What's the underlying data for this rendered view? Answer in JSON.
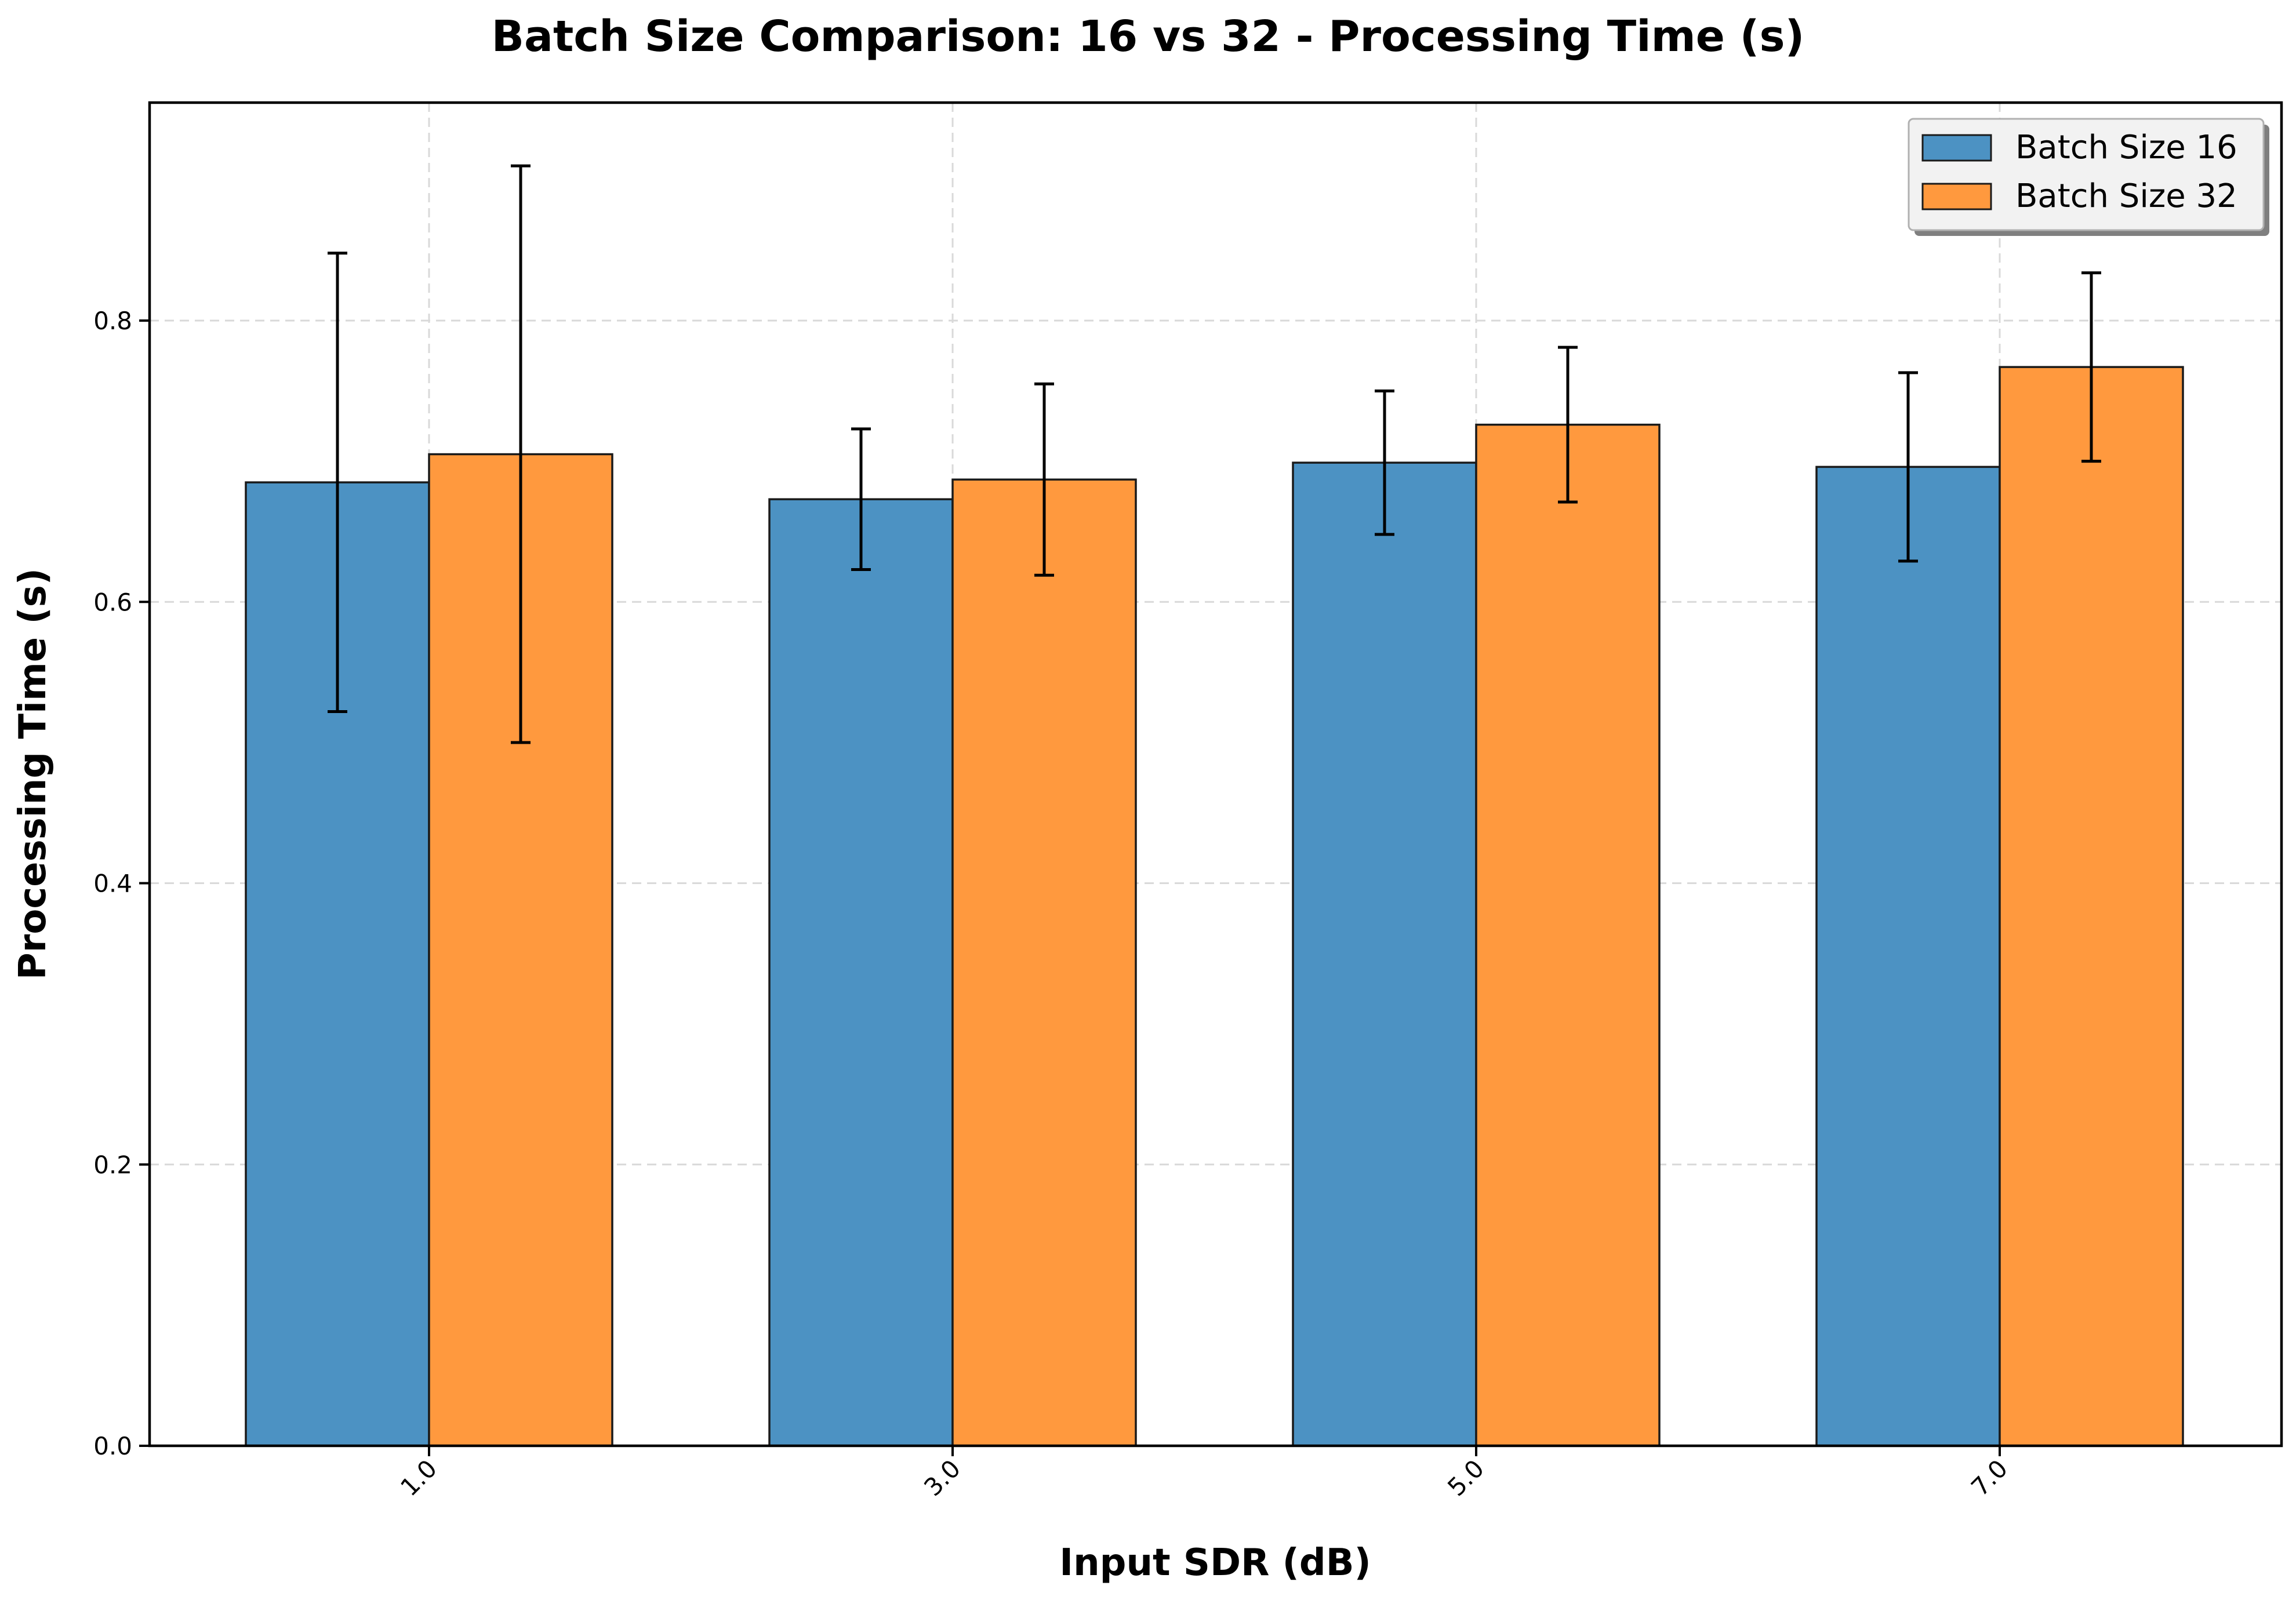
{
  "chart_data": {
    "type": "bar",
    "title": "Batch Size Comparison: 16 vs 32 - Processing Time (s)",
    "xlabel": "Input SDR (dB)",
    "ylabel": "Processing Time (s)",
    "categories": [
      "1.0",
      "3.0",
      "5.0",
      "7.0"
    ],
    "ylim": [
      0,
      0.955
    ],
    "yticks": [
      "0.0",
      "0.2",
      "0.4",
      "0.6",
      "0.8"
    ],
    "grid": true,
    "legend_position": "top-right",
    "series": [
      {
        "name": "Batch Size 16",
        "color": "#4c92c3",
        "values": [
          0.685,
          0.673,
          0.699,
          0.696
        ],
        "errors": [
          0.163,
          0.05,
          0.051,
          0.067
        ]
      },
      {
        "name": "Batch Size 32",
        "color": "#ff993e",
        "values": [
          0.705,
          0.687,
          0.726,
          0.767
        ],
        "errors": [
          0.205,
          0.068,
          0.055,
          0.067
        ]
      }
    ]
  }
}
